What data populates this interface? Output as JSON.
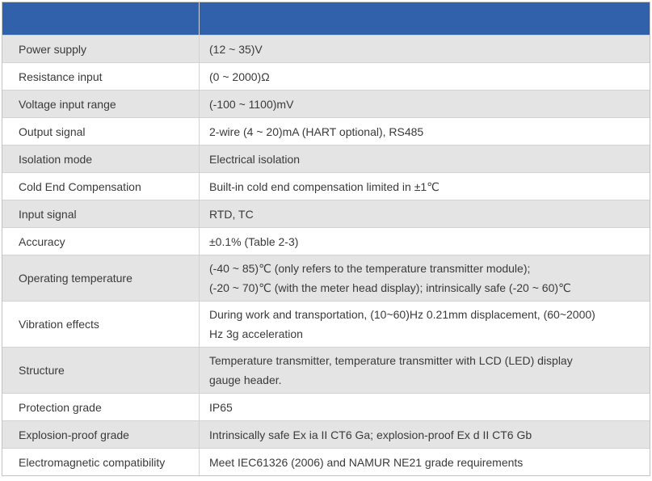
{
  "table": {
    "header": {
      "left": "",
      "right": ""
    },
    "rows": [
      {
        "label": "Power supply",
        "value": "(12 ~ 35)V"
      },
      {
        "label": "Resistance input",
        "value": "(0 ~ 2000)Ω"
      },
      {
        "label": "Voltage input range",
        "value": "(-100 ~ 1100)mV"
      },
      {
        "label": "Output signal",
        "value": "2-wire (4 ~ 20)mA (HART optional), RS485"
      },
      {
        "label": "Isolation mode",
        "value": "Electrical isolation"
      },
      {
        "label": "Cold End Compensation",
        "value": "Built-in cold end compensation limited in ±1℃"
      },
      {
        "label": "Input signal",
        "value": "RTD, TC"
      },
      {
        "label": "Accuracy",
        "value": "±0.1% (Table 2-3)"
      },
      {
        "label": "Operating temperature",
        "value": "(-40 ~ 85)℃ (only refers to the temperature transmitter module);\n(-20 ~ 70)℃ (with the meter head display); intrinsically safe (-20 ~ 60)℃"
      },
      {
        "label": "Vibration effects",
        "value": "During work and transportation, (10~60)Hz 0.21mm displacement, (60~2000)\nHz 3g acceleration"
      },
      {
        "label": "Structure",
        "value": "Temperature transmitter, temperature transmitter with LCD (LED) display\ngauge header."
      },
      {
        "label": "Protection grade",
        "value": "IP65"
      },
      {
        "label": "Explosion-proof grade",
        "value": "Intrinsically safe Ex ia II CT6 Ga; explosion-proof Ex d II CT6 Gb"
      },
      {
        "label": "Electromagnetic compatibility",
        "value": "Meet IEC61326 (2006) and NAMUR NE21 grade requirements"
      }
    ]
  },
  "colors": {
    "header_bg": "#3261ac",
    "row_shaded_bg": "#e4e4e4",
    "row_plain_bg": "#ffffff",
    "border": "#c3c3c3",
    "divider": "#d2d2d2",
    "text": "#3a3a3a"
  }
}
